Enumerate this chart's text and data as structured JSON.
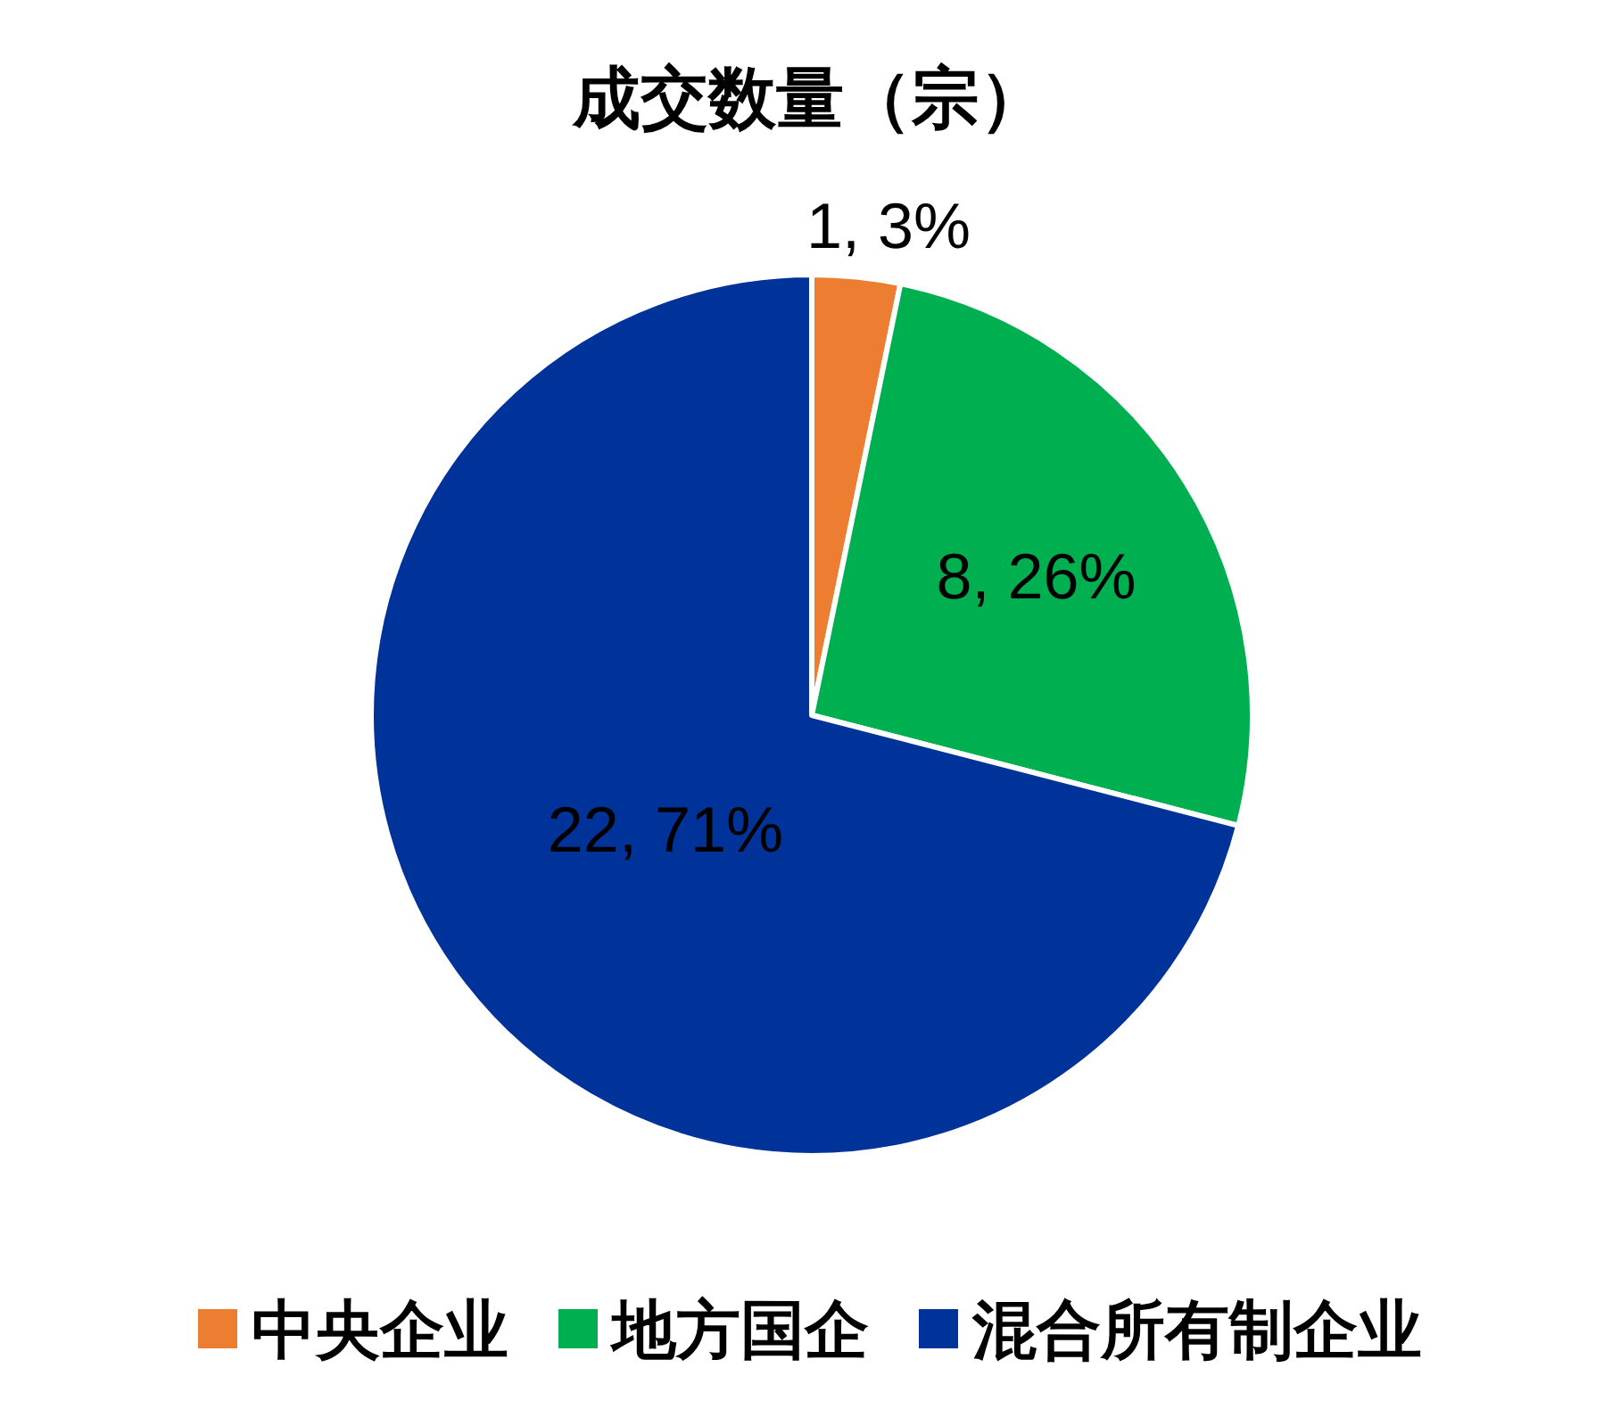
{
  "chart_data": {
    "type": "pie",
    "title": "成交数量（宗）",
    "categories": [
      "中央企业",
      "地方国企",
      "混合所有制企业"
    ],
    "values": [
      1,
      8,
      22
    ],
    "colors": [
      "#ed7d31",
      "#00b050",
      "#003399"
    ],
    "value_labels": [
      "1, 3%",
      "8, 26%",
      "22, 71%"
    ],
    "legend": "bottom"
  }
}
